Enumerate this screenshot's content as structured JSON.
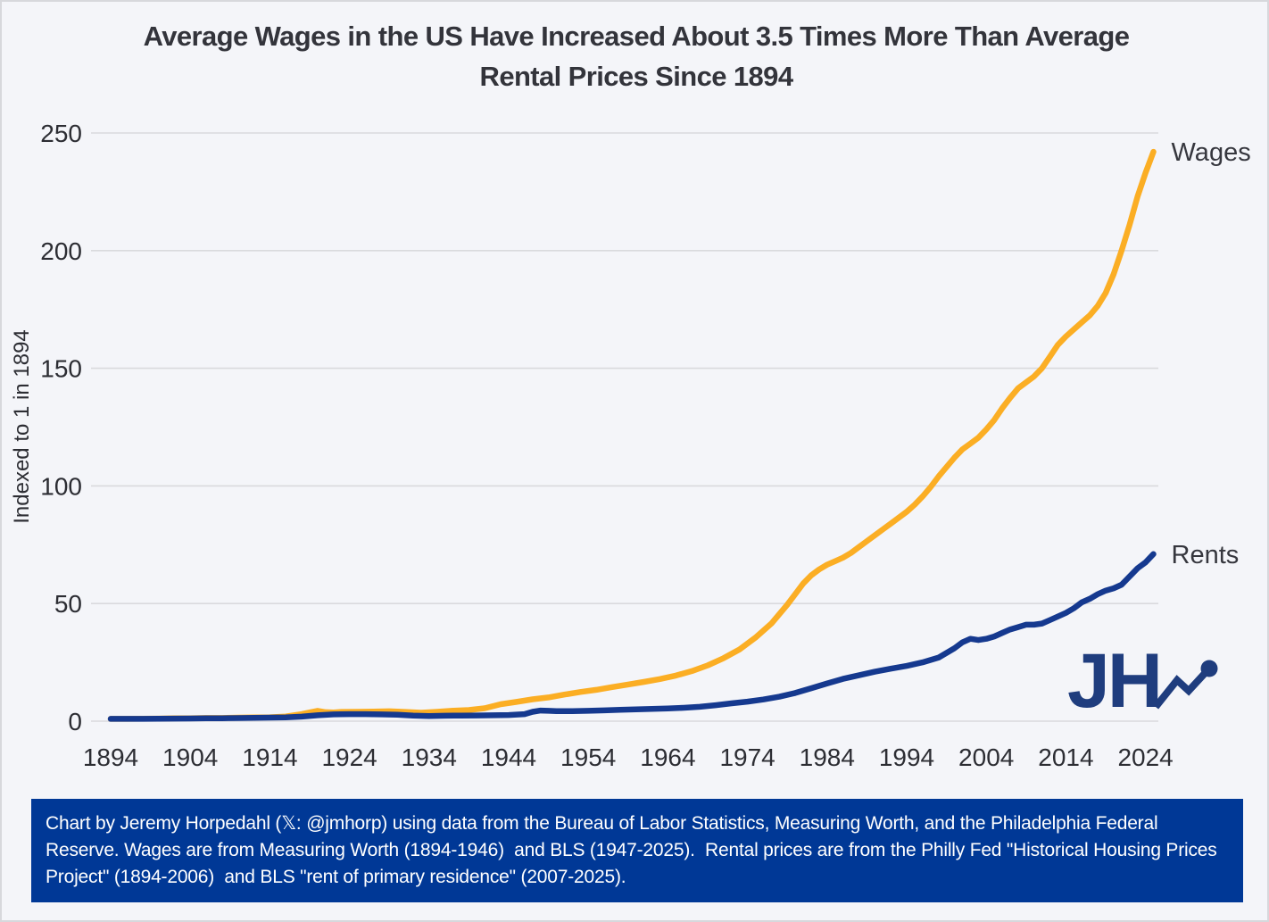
{
  "page": {
    "title_line1": "Average Wages in the US Have Increased About 3.5 Times More Than Average",
    "title_line2": "Rental Prices Since 1894"
  },
  "logo": {
    "text": "JH"
  },
  "footer": {
    "text": "Chart by Jeremy Horpedahl (𝕏: @jmhorp) using data from the Bureau of Labor Statistics, Measuring Worth, and the Philadelphia Federal Reserve. Wages are from Measuring Worth (1894-1946)  and BLS (1947-2025).  Rental prices are from the Philly Fed \"Historical Housing Prices Project\" (1894-2006)  and BLS \"rent of primary residence\" (2007-2025)."
  },
  "colors": {
    "wages": "#FBAE24",
    "rents": "#15398F",
    "footer_bg": "#003896",
    "logo_blue": "#1F3D7E",
    "grid": "#D9DADD",
    "background": "#F4F5F9",
    "text_dark": "#2C2D33",
    "label_dark": "#36373E"
  },
  "chart_data": {
    "type": "line",
    "title": "Average Wages in the US Have Increased About 3.5 Times More Than Average Rental Prices Since 1894",
    "xlabel": "",
    "ylabel": "Indexed to 1 in 1894",
    "x_range": [
      1894,
      2025
    ],
    "ylim": [
      0,
      250
    ],
    "yticks": [
      0,
      50,
      100,
      150,
      200,
      250
    ],
    "xticks": [
      1894,
      1904,
      1914,
      1924,
      1934,
      1944,
      1954,
      1964,
      1974,
      1984,
      1994,
      2004,
      2014,
      2024
    ],
    "grid": "horizontal",
    "legend": "series-end-labels",
    "series": [
      {
        "name": "Wages",
        "color": "#FBAE24",
        "points": [
          [
            1894,
            1
          ],
          [
            1896,
            0.97
          ],
          [
            1898,
            1.02
          ],
          [
            1900,
            1.1
          ],
          [
            1902,
            1.2
          ],
          [
            1904,
            1.27
          ],
          [
            1906,
            1.36
          ],
          [
            1908,
            1.38
          ],
          [
            1910,
            1.5
          ],
          [
            1912,
            1.6
          ],
          [
            1914,
            1.67
          ],
          [
            1916,
            2
          ],
          [
            1918,
            3
          ],
          [
            1919,
            3.7
          ],
          [
            1920,
            4.4
          ],
          [
            1921,
            3.85
          ],
          [
            1922,
            3.7
          ],
          [
            1923,
            3.95
          ],
          [
            1925,
            4
          ],
          [
            1927,
            4.05
          ],
          [
            1929,
            4.2
          ],
          [
            1931,
            3.95
          ],
          [
            1933,
            3.6
          ],
          [
            1935,
            4
          ],
          [
            1937,
            4.45
          ],
          [
            1939,
            4.75
          ],
          [
            1941,
            5.5
          ],
          [
            1943,
            7.2
          ],
          [
            1945,
            8.2
          ],
          [
            1947,
            9.3
          ],
          [
            1949,
            10.1
          ],
          [
            1951,
            11.3
          ],
          [
            1953,
            12.4
          ],
          [
            1955,
            13.3
          ],
          [
            1957,
            14.5
          ],
          [
            1959,
            15.6
          ],
          [
            1961,
            16.7
          ],
          [
            1963,
            17.9
          ],
          [
            1965,
            19.4
          ],
          [
            1967,
            21.3
          ],
          [
            1969,
            23.7
          ],
          [
            1971,
            26.8
          ],
          [
            1973,
            30.5
          ],
          [
            1975,
            35.5
          ],
          [
            1977,
            41.5
          ],
          [
            1979,
            49.5
          ],
          [
            1980,
            54
          ],
          [
            1981,
            58.5
          ],
          [
            1982,
            62
          ],
          [
            1983,
            64.5
          ],
          [
            1984,
            66.5
          ],
          [
            1985,
            68
          ],
          [
            1986,
            69.5
          ],
          [
            1987,
            71.5
          ],
          [
            1988,
            74
          ],
          [
            1989,
            76.5
          ],
          [
            1990,
            79
          ],
          [
            1991,
            81.5
          ],
          [
            1992,
            84
          ],
          [
            1993,
            86.5
          ],
          [
            1994,
            89
          ],
          [
            1995,
            92
          ],
          [
            1996,
            95.5
          ],
          [
            1997,
            99.5
          ],
          [
            1998,
            104
          ],
          [
            1999,
            108
          ],
          [
            2000,
            112
          ],
          [
            2001,
            115.5
          ],
          [
            2002,
            118
          ],
          [
            2003,
            120.5
          ],
          [
            2004,
            124
          ],
          [
            2005,
            128
          ],
          [
            2006,
            133
          ],
          [
            2007,
            137.5
          ],
          [
            2008,
            141.5
          ],
          [
            2009,
            144
          ],
          [
            2010,
            146.5
          ],
          [
            2011,
            150
          ],
          [
            2012,
            155
          ],
          [
            2013,
            160
          ],
          [
            2014,
            163.5
          ],
          [
            2015,
            166.5
          ],
          [
            2016,
            169.5
          ],
          [
            2017,
            172.5
          ],
          [
            2018,
            176.5
          ],
          [
            2019,
            182
          ],
          [
            2020,
            190
          ],
          [
            2021,
            200
          ],
          [
            2022,
            211
          ],
          [
            2023,
            223
          ],
          [
            2024,
            233
          ],
          [
            2025,
            242
          ]
        ]
      },
      {
        "name": "Rents",
        "color": "#15398F",
        "points": [
          [
            1894,
            1
          ],
          [
            1896,
            1
          ],
          [
            1898,
            1
          ],
          [
            1900,
            1.05
          ],
          [
            1902,
            1.1
          ],
          [
            1904,
            1.15
          ],
          [
            1906,
            1.2
          ],
          [
            1908,
            1.25
          ],
          [
            1910,
            1.32
          ],
          [
            1912,
            1.4
          ],
          [
            1914,
            1.5
          ],
          [
            1916,
            1.62
          ],
          [
            1918,
            1.95
          ],
          [
            1920,
            2.5
          ],
          [
            1922,
            2.9
          ],
          [
            1924,
            3
          ],
          [
            1926,
            3
          ],
          [
            1928,
            2.9
          ],
          [
            1930,
            2.75
          ],
          [
            1932,
            2.4
          ],
          [
            1934,
            2.2
          ],
          [
            1936,
            2.3
          ],
          [
            1938,
            2.4
          ],
          [
            1940,
            2.42
          ],
          [
            1942,
            2.5
          ],
          [
            1944,
            2.6
          ],
          [
            1946,
            3
          ],
          [
            1947,
            4
          ],
          [
            1948,
            4.5
          ],
          [
            1949,
            4.4
          ],
          [
            1950,
            4.25
          ],
          [
            1952,
            4.3
          ],
          [
            1954,
            4.4
          ],
          [
            1956,
            4.6
          ],
          [
            1958,
            4.8
          ],
          [
            1960,
            5
          ],
          [
            1962,
            5.2
          ],
          [
            1964,
            5.4
          ],
          [
            1966,
            5.7
          ],
          [
            1968,
            6.1
          ],
          [
            1970,
            6.8
          ],
          [
            1972,
            7.6
          ],
          [
            1974,
            8.3
          ],
          [
            1976,
            9.2
          ],
          [
            1978,
            10.4
          ],
          [
            1980,
            12
          ],
          [
            1982,
            14
          ],
          [
            1984,
            16
          ],
          [
            1986,
            18
          ],
          [
            1988,
            19.5
          ],
          [
            1990,
            21
          ],
          [
            1992,
            22.3
          ],
          [
            1994,
            23.5
          ],
          [
            1996,
            25
          ],
          [
            1998,
            27
          ],
          [
            2000,
            31
          ],
          [
            2001,
            33.5
          ],
          [
            2002,
            35
          ],
          [
            2003,
            34.5
          ],
          [
            2004,
            35
          ],
          [
            2005,
            36
          ],
          [
            2006,
            37.5
          ],
          [
            2007,
            39
          ],
          [
            2008,
            40
          ],
          [
            2009,
            41
          ],
          [
            2010,
            41
          ],
          [
            2011,
            41.5
          ],
          [
            2012,
            43
          ],
          [
            2013,
            44.5
          ],
          [
            2014,
            46
          ],
          [
            2015,
            48
          ],
          [
            2016,
            50.5
          ],
          [
            2017,
            52
          ],
          [
            2018,
            54
          ],
          [
            2019,
            55.5
          ],
          [
            2020,
            56.5
          ],
          [
            2021,
            58
          ],
          [
            2022,
            61.5
          ],
          [
            2023,
            65
          ],
          [
            2024,
            67.5
          ],
          [
            2025,
            71
          ]
        ]
      }
    ]
  }
}
